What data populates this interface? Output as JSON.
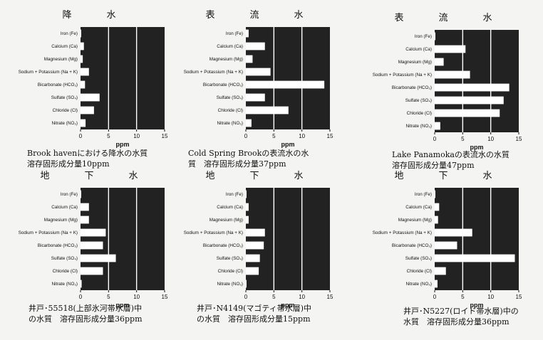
{
  "chart_data": [
    {
      "type": "bar",
      "title": "降　水",
      "categories": [
        "Iron (Fe)",
        "Calcium (Ca)",
        "Magnesium (Mg)",
        "Sodium + Potassium (Na + K)",
        "Bicarbonate (HCO₃)",
        "Sulfate (SO₄)",
        "Chloride (Cl)",
        "Nitrate (NO₃)"
      ],
      "values": [
        0.1,
        0.6,
        0.4,
        1.5,
        0.8,
        3.4,
        2.4,
        0.9
      ],
      "xlabel": "ppm",
      "xlim": [
        0,
        15
      ],
      "xticks": [
        "0",
        "5",
        "10",
        "15"
      ],
      "caption": "Brook havenにおける降水の水質\n溶存固形成分量10ppm"
    },
    {
      "type": "bar",
      "title": "表　流　水",
      "categories": [
        "Iron (Fe)",
        "Calcium (Ca)",
        "Magnesium (Mg)",
        "Sodium + Potassium (Na + K)",
        "Bicarbonate (HCO₃)",
        "Sulfate (SO₄)",
        "Chloride (Cl)",
        "Nitrate (NO₃)"
      ],
      "values": [
        0.5,
        3.4,
        1.2,
        4.4,
        14.0,
        3.4,
        7.6,
        1.0
      ],
      "xlabel": "ppm",
      "xlim": [
        0,
        15
      ],
      "xticks": [
        "0",
        "5",
        "10",
        "15"
      ],
      "caption": "Cold Spring Brookの表流水の水\n質　溶存固形成分量37ppm"
    },
    {
      "type": "bar",
      "title": "表　流　水",
      "categories": [
        "Iron (Fe)",
        "Calcium (Ca)",
        "Magnesium (Mg)",
        "Sodium + Potassium (Na + K)",
        "Bicarbonate (HCO₃)",
        "Sulfate (SO₄)",
        "Chloride (Cl)",
        "Nitrate (NO₃)"
      ],
      "values": [
        0.1,
        5.5,
        1.6,
        6.3,
        13.3,
        12.3,
        11.6,
        1.0
      ],
      "xlabel": "ppm",
      "xlim": [
        0,
        15
      ],
      "xticks": [
        "0",
        "5",
        "10",
        "15"
      ],
      "caption": "Lake Panamokaの表流水の水質\n溶存固形成分量47ppm"
    },
    {
      "type": "bar",
      "title": "地　下　水",
      "categories": [
        "Iron (Fe)",
        "Calcium (Ca)",
        "Magnesium (Mg)",
        "Sodium + Potassium (Na + K)",
        "Bicarbonate (HCO₃)",
        "Sulfate (SO₄)",
        "Chloride (Cl)",
        "Nitrate (NO₃)"
      ],
      "values": [
        0.1,
        1.5,
        1.5,
        4.5,
        4.0,
        6.3,
        4.0,
        0.2
      ],
      "xlabel": "ppm",
      "xlim": [
        0,
        15
      ],
      "xticks": [
        "0",
        "5",
        "10",
        "15"
      ],
      "caption": "井戸･55518(上部氷河帯水層)中\nの水質　溶存固形成分量36ppm"
    },
    {
      "type": "bar",
      "title": "地　下　水",
      "categories": [
        "Iron (Fe)",
        "Calcium (Ca)",
        "Magnesium (Mg)",
        "Sodium + Potassium (Na + K)",
        "Bicarbonate (HCO₃)",
        "Sulfate (SO₄)",
        "Chloride (Cl)",
        "Nitrate (NO₃)"
      ],
      "values": [
        0.1,
        0.5,
        0.5,
        3.4,
        3.2,
        2.5,
        2.3,
        0.1
      ],
      "xlabel": "ppm",
      "xlim": [
        0,
        15
      ],
      "xticks": [
        "0",
        "5",
        "10",
        "15"
      ],
      "caption": "井戸･N4149(マゴティ帯水層)中\nの水質　溶存固形成分量15ppm"
    },
    {
      "type": "bar",
      "title": "地　下　水",
      "categories": [
        "Iron (Fe)",
        "Calcium (Ca)",
        "Magnesium (Mg)",
        "Sodium + Potassium (Na + K)",
        "Bicarbonate (HCO₃)",
        "Sulfate (SO₄)",
        "Chloride (Cl)",
        "Nitrate (NO₃)"
      ],
      "values": [
        0.1,
        0.8,
        0.6,
        6.7,
        4.0,
        14.3,
        2.0,
        0.5
      ],
      "xlabel": "ppm",
      "xlim": [
        0,
        15
      ],
      "xticks": [
        "0",
        "5",
        "10",
        "15"
      ],
      "caption": "井戸･N5227(ロイド帯水層)中の\n水質　溶存固形成分量36ppm"
    }
  ],
  "colors": {
    "plot_bg": "#222222",
    "bar": "#ffffff",
    "grid": "#ffffff"
  }
}
